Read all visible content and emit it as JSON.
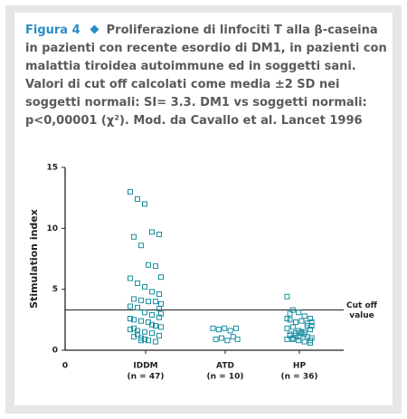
{
  "figure_label": "Figura 4",
  "caption": "Proliferazione di linfociti T alla β-caseina in pazienti con recente esordio di DM1, in pazienti con malattia tiroidea autoimmune ed in soggetti sani. Valori di cut off calcolati come media ±2 SD nei soggetti normali: SI= 3.3. DM1 vs soggetti normali: p<0,00001 (χ²). Mod. da Cavallo et al. Lancet 1996",
  "chart_data": {
    "type": "strip",
    "y_label": "Stimulation index",
    "x_origin_label": "0",
    "categories": [
      "IDDM",
      "ATD",
      "HP"
    ],
    "category_notes": [
      "(n = 47)",
      "(n = 10)",
      "(n = 36)"
    ],
    "color": "#1a8fa0",
    "ylim": [
      0,
      15
    ],
    "yticks": [
      0,
      5,
      10,
      15
    ],
    "cutoff": 3.3,
    "cutoff_label": [
      "Cut off",
      "value"
    ],
    "groups": [
      [
        13.0,
        12.4,
        12.0,
        9.7,
        9.5,
        9.3,
        8.6,
        7.0,
        6.9,
        6.0,
        5.9,
        5.5,
        5.2,
        4.8,
        4.6,
        4.2,
        4.1,
        4.0,
        4.0,
        3.8,
        3.6,
        3.5,
        3.1,
        2.9,
        2.7,
        2.5,
        2.4,
        2.3,
        2.0,
        1.9,
        1.7,
        1.6,
        1.5,
        1.4,
        1.2,
        1.1,
        1.0,
        0.8,
        0.7,
        3.0,
        2.6,
        1.3,
        0.9,
        2.1,
        3.4,
        1.8,
        0.8
      ],
      [
        1.8,
        1.7,
        1.8,
        1.6,
        1.8,
        0.9,
        1.0,
        0.8,
        1.1,
        0.9
      ],
      [
        4.4,
        3.3,
        3.1,
        2.8,
        2.6,
        2.5,
        2.3,
        2.4,
        2.2,
        2.0,
        1.8,
        1.9,
        1.6,
        1.5,
        1.7,
        1.3,
        1.2,
        1.4,
        1.1,
        1.0,
        0.9,
        1.0,
        0.8,
        0.7,
        0.6,
        1.2,
        1.4,
        1.5,
        2.0,
        2.3,
        2.6,
        0.9,
        1.1,
        1.3,
        0.8,
        3.0
      ]
    ]
  }
}
